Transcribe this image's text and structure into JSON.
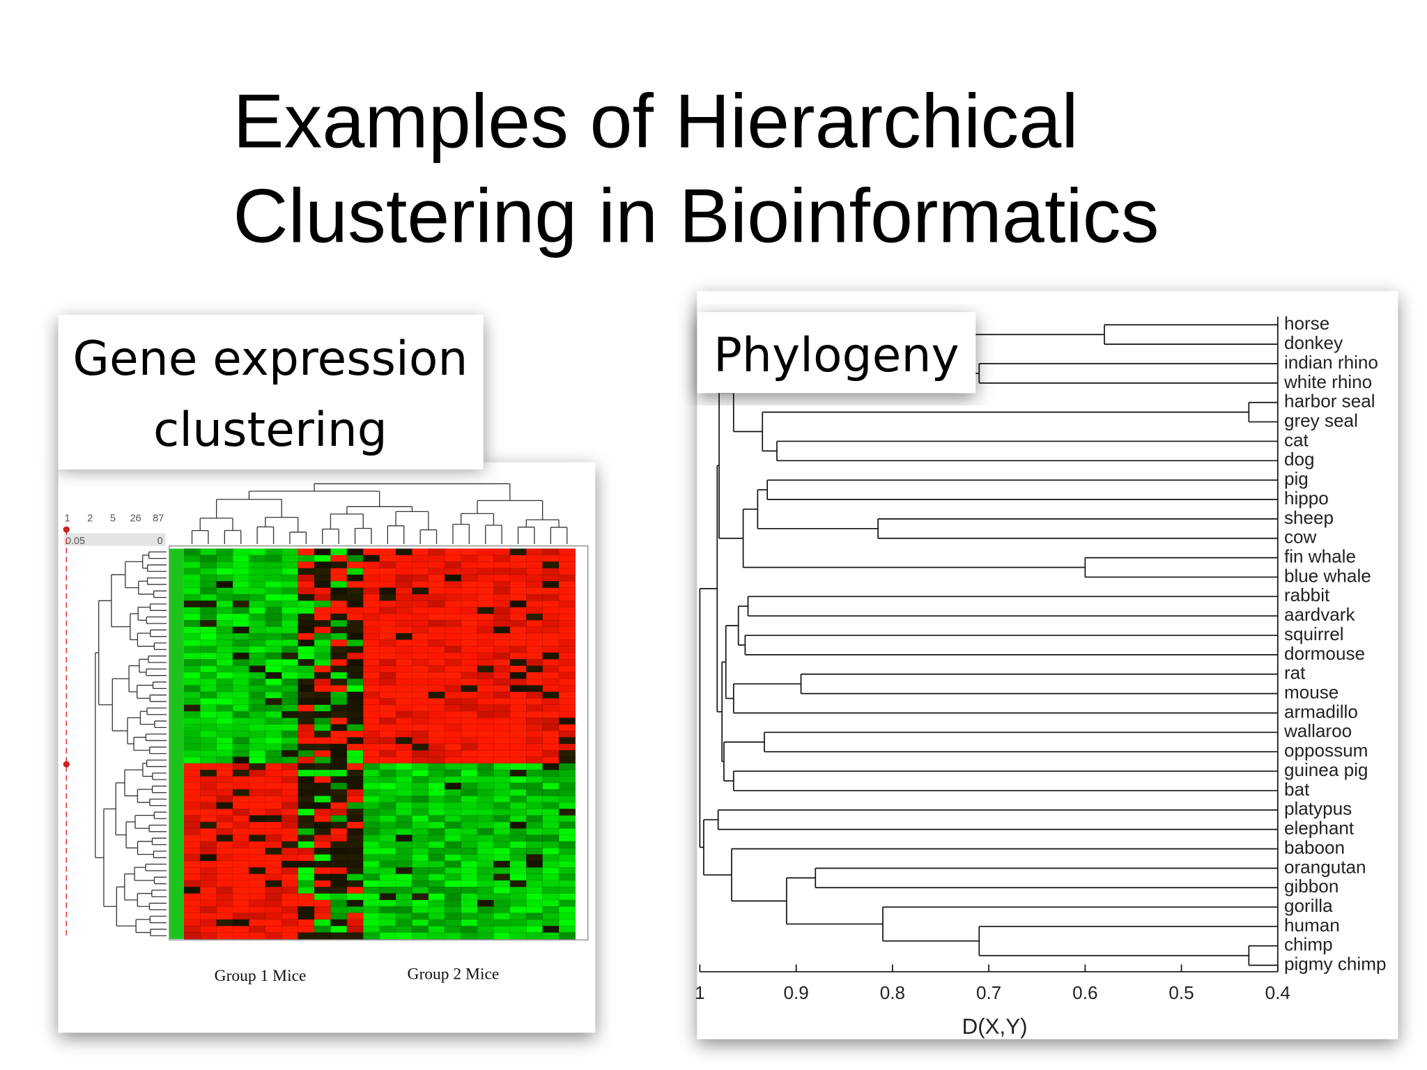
{
  "title": [
    "Examples of Hierarchical",
    "Clustering in Bioinformatics"
  ],
  "gene_expression": {
    "label": [
      "Gene expression",
      "clustering"
    ],
    "scale_labels": [
      "1",
      "2",
      "5",
      "26",
      "87"
    ],
    "threshold_labels": [
      "0.05",
      "0"
    ],
    "groups": [
      "Group 1 Mice",
      "Group 2 Mice"
    ]
  },
  "phylogeny": {
    "label": "Phylogeny",
    "xlim": [
      1,
      0.4
    ],
    "xticks": [
      1,
      0.9,
      0.8,
      0.7,
      0.6,
      0.5,
      0.4
    ],
    "xlabel": "D(X,Y)",
    "tree": {
      "height": 1.0,
      "children": [
        {
          "height": 0.982,
          "children": [
            {
              "height": 0.98,
              "children": [
                {
                  "height": 0.965,
                  "children": [
                    {
                      "height": 0.715,
                      "children": [
                        {
                          "height": 0.58,
                          "children": [
                            {
                              "label": "horse"
                            },
                            {
                              "label": "donkey"
                            }
                          ]
                        },
                        {
                          "height": 0.71,
                          "children": [
                            {
                              "label": "indian rhino"
                            },
                            {
                              "label": "white rhino"
                            }
                          ]
                        }
                      ]
                    },
                    {
                      "height": 0.935,
                      "children": [
                        {
                          "height": 0.43,
                          "children": [
                            {
                              "label": "harbor seal"
                            },
                            {
                              "label": "grey seal"
                            }
                          ]
                        },
                        {
                          "height": 0.92,
                          "children": [
                            {
                              "label": "cat"
                            },
                            {
                              "label": "dog"
                            }
                          ]
                        }
                      ]
                    }
                  ]
                },
                {
                  "height": 0.955,
                  "children": [
                    {
                      "height": 0.94,
                      "children": [
                        {
                          "height": 0.93,
                          "children": [
                            {
                              "label": "pig"
                            },
                            {
                              "label": "hippo"
                            }
                          ]
                        },
                        {
                          "height": 0.815,
                          "children": [
                            {
                              "label": "sheep"
                            },
                            {
                              "label": "cow"
                            }
                          ]
                        }
                      ]
                    },
                    {
                      "height": 0.6,
                      "children": [
                        {
                          "label": "fin whale"
                        },
                        {
                          "label": "blue whale"
                        }
                      ]
                    }
                  ]
                }
              ]
            },
            {
              "height": 0.977,
              "children": [
                {
                  "height": 0.973,
                  "children": [
                    {
                      "height": 0.96,
                      "children": [
                        {
                          "height": 0.95,
                          "children": [
                            {
                              "label": "rabbit"
                            },
                            {
                              "label": "aardvark"
                            }
                          ]
                        },
                        {
                          "height": 0.953,
                          "children": [
                            {
                              "label": "squirrel"
                            },
                            {
                              "label": "dormouse"
                            }
                          ]
                        }
                      ]
                    },
                    {
                      "height": 0.965,
                      "children": [
                        {
                          "height": 0.895,
                          "children": [
                            {
                              "label": "rat"
                            },
                            {
                              "label": "mouse"
                            }
                          ]
                        },
                        {
                          "label": "armadillo"
                        }
                      ]
                    }
                  ]
                },
                {
                  "height": 0.975,
                  "children": [
                    {
                      "height": 0.933,
                      "children": [
                        {
                          "label": "wallaroo"
                        },
                        {
                          "label": "oppossum"
                        }
                      ]
                    },
                    {
                      "height": 0.965,
                      "children": [
                        {
                          "label": "guinea pig"
                        },
                        {
                          "label": "bat"
                        }
                      ]
                    }
                  ]
                }
              ]
            }
          ]
        },
        {
          "height": 0.996,
          "children": [
            {
              "height": 0.981,
              "children": [
                {
                  "label": "platypus"
                },
                {
                  "label": "elephant"
                }
              ]
            },
            {
              "height": 0.967,
              "children": [
                {
                  "label": "baboon"
                },
                {
                  "height": 0.91,
                  "children": [
                    {
                      "height": 0.88,
                      "children": [
                        {
                          "label": "orangutan"
                        },
                        {
                          "label": "gibbon"
                        }
                      ]
                    },
                    {
                      "height": 0.81,
                      "children": [
                        {
                          "label": "gorilla"
                        },
                        {
                          "height": 0.71,
                          "children": [
                            {
                              "label": "human"
                            },
                            {
                              "height": 0.43,
                              "children": [
                                {
                                  "label": "chimp"
                                },
                                {
                                  "label": "pigmy chimp"
                                }
                              ]
                            }
                          ]
                        }
                      ]
                    }
                  ]
                }
              ]
            }
          ]
        }
      ]
    }
  }
}
